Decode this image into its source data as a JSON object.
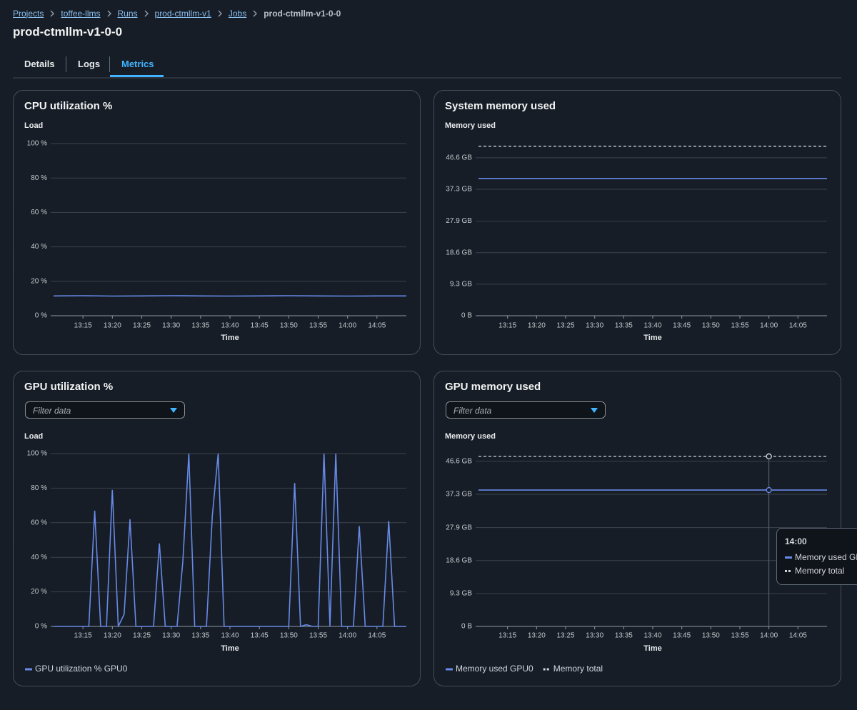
{
  "breadcrumbs": [
    "Projects",
    "toffee-llms",
    "Runs",
    "prod-ctmllm-v1",
    "Jobs",
    "prod-ctmllm-v1-0-0"
  ],
  "page_title": "prod-ctmllm-v1-0-0",
  "tabs": [
    "Details",
    "Logs",
    "Metrics"
  ],
  "chart_data": [
    {
      "type": "line",
      "title": "CPU utilization %",
      "y_label": "Load",
      "x_label": "Time",
      "x": [
        "13:10",
        "13:15",
        "13:20",
        "13:25",
        "13:30",
        "13:35",
        "13:40",
        "13:45",
        "13:50",
        "13:55",
        "14:00",
        "14:05",
        "14:10"
      ],
      "series": [
        {
          "color": "#688ae8",
          "values": [
            11.5,
            11.6,
            11.4,
            11.5,
            11.6,
            11.5,
            11.4,
            11.5,
            11.6,
            11.5,
            11.4,
            11.5,
            11.5
          ]
        }
      ],
      "xlim": [
        "13:10",
        "14:10"
      ],
      "xticks": [
        "13:15",
        "13:20",
        "13:25",
        "13:30",
        "13:35",
        "13:40",
        "13:45",
        "13:50",
        "13:55",
        "14:00",
        "14:05"
      ],
      "ylim": [
        0,
        100
      ],
      "yticks": [
        {
          "value": 0,
          "label": "0 %"
        },
        {
          "value": 20,
          "label": "20 %"
        },
        {
          "value": 40,
          "label": "40 %"
        },
        {
          "value": 60,
          "label": "60 %"
        },
        {
          "value": 80,
          "label": "80 %"
        },
        {
          "value": 100,
          "label": "100 %"
        }
      ],
      "grid": true
    },
    {
      "type": "line",
      "title": "System memory used",
      "y_label": "Memory used",
      "x_label": "Time",
      "x": [
        "13:10",
        "13:15",
        "13:20",
        "13:25",
        "13:30",
        "13:35",
        "13:40",
        "13:45",
        "13:50",
        "13:55",
        "14:00",
        "14:05",
        "14:10"
      ],
      "series": [
        {
          "color": "#688ae8",
          "values": [
            40.5,
            40.5,
            40.5,
            40.5,
            40.5,
            40.5,
            40.5,
            40.5,
            40.5,
            40.5,
            40.5,
            40.5,
            40.5
          ]
        },
        {
          "color": "#d1d5db",
          "dashed": true,
          "values": [
            50,
            50,
            50,
            50,
            50,
            50,
            50,
            50,
            50,
            50,
            50,
            50,
            50
          ]
        }
      ],
      "xlim": [
        "13:10",
        "14:10"
      ],
      "xticks": [
        "13:15",
        "13:20",
        "13:25",
        "13:30",
        "13:35",
        "13:40",
        "13:45",
        "13:50",
        "13:55",
        "14:00",
        "14:05"
      ],
      "ylim": [
        0,
        51.2
      ],
      "yticks": [
        {
          "value": 0,
          "label": "0 B"
        },
        {
          "value": 9.3,
          "label": "9.3 GB"
        },
        {
          "value": 18.6,
          "label": "18.6 GB"
        },
        {
          "value": 27.9,
          "label": "27.9 GB"
        },
        {
          "value": 37.3,
          "label": "37.3 GB"
        },
        {
          "value": 46.6,
          "label": "46.6 GB"
        }
      ],
      "grid": true
    },
    {
      "type": "line",
      "title": "GPU utilization %",
      "filter_placeholder": "Filter data",
      "y_label": "Load",
      "x_label": "Time",
      "x": [
        "13:10",
        "13:11",
        "13:12",
        "13:13",
        "13:14",
        "13:15",
        "13:16",
        "13:17",
        "13:18",
        "13:19",
        "13:20",
        "13:21",
        "13:22",
        "13:23",
        "13:24",
        "13:25",
        "13:26",
        "13:27",
        "13:28",
        "13:29",
        "13:30",
        "13:31",
        "13:32",
        "13:33",
        "13:34",
        "13:35",
        "13:36",
        "13:37",
        "13:38",
        "13:39",
        "13:40",
        "13:41",
        "13:42",
        "13:43",
        "13:44",
        "13:45",
        "13:46",
        "13:47",
        "13:48",
        "13:49",
        "13:50",
        "13:51",
        "13:52",
        "13:53",
        "13:54",
        "13:55",
        "13:56",
        "13:57",
        "13:58",
        "13:59",
        "14:00",
        "14:01",
        "14:02",
        "14:03",
        "14:04",
        "14:05",
        "14:06",
        "14:07",
        "14:08",
        "14:09",
        "14:10"
      ],
      "series": [
        {
          "name": "GPU utilization % GPU0",
          "color": "#688ae8",
          "values": [
            0,
            0,
            0,
            0,
            0,
            0,
            0,
            67,
            0,
            0,
            79,
            0,
            7,
            62,
            0,
            0,
            0,
            0,
            48,
            0,
            0,
            0,
            38,
            100,
            0,
            0,
            0,
            64,
            100,
            0,
            0,
            0,
            0,
            0,
            0,
            0,
            0,
            0,
            0,
            0,
            0,
            83,
            0,
            1,
            0,
            0,
            100,
            0,
            100,
            0,
            0,
            0,
            58,
            0,
            0,
            0,
            0,
            61,
            0,
            0,
            0
          ]
        }
      ],
      "xlim": [
        "13:10",
        "14:10"
      ],
      "xticks": [
        "13:15",
        "13:20",
        "13:25",
        "13:30",
        "13:35",
        "13:40",
        "13:45",
        "13:50",
        "13:55",
        "14:00",
        "14:05"
      ],
      "ylim": [
        0,
        100
      ],
      "yticks": [
        {
          "value": 0,
          "label": "0 %"
        },
        {
          "value": 20,
          "label": "20 %"
        },
        {
          "value": 40,
          "label": "40 %"
        },
        {
          "value": 60,
          "label": "60 %"
        },
        {
          "value": 80,
          "label": "80 %"
        },
        {
          "value": 100,
          "label": "100 %"
        }
      ],
      "grid": true
    },
    {
      "type": "line",
      "title": "GPU memory used",
      "filter_placeholder": "Filter data",
      "y_label": "Memory used",
      "x_label": "Time",
      "x": [
        "13:10",
        "13:15",
        "13:20",
        "13:25",
        "13:30",
        "13:35",
        "13:40",
        "13:45",
        "13:50",
        "13:55",
        "14:00",
        "14:05",
        "14:10"
      ],
      "series": [
        {
          "name": "Memory used GPU0",
          "color": "#688ae8",
          "values": [
            38.5,
            38.5,
            38.5,
            38.5,
            38.5,
            38.5,
            38.5,
            38.5,
            38.5,
            38.5,
            38.5,
            38.5,
            38.5
          ]
        },
        {
          "name": "Memory total",
          "color": "#d1d5db",
          "dashed": true,
          "values": [
            48,
            48,
            48,
            48,
            48,
            48,
            48,
            48,
            48,
            48,
            48,
            48,
            48
          ]
        }
      ],
      "xlim": [
        "13:10",
        "14:10"
      ],
      "xticks": [
        "13:15",
        "13:20",
        "13:25",
        "13:30",
        "13:35",
        "13:40",
        "13:45",
        "13:50",
        "13:55",
        "14:00",
        "14:05"
      ],
      "ylim": [
        0,
        49
      ],
      "yticks": [
        {
          "value": 0,
          "label": "0 B"
        },
        {
          "value": 9.3,
          "label": "9.3 GB"
        },
        {
          "value": 18.6,
          "label": "18.6 GB"
        },
        {
          "value": 27.9,
          "label": "27.9 GB"
        },
        {
          "value": 37.3,
          "label": "37.3 GB"
        },
        {
          "value": 46.6,
          "label": "46.6 GB"
        }
      ],
      "grid": true
    }
  ]
}
